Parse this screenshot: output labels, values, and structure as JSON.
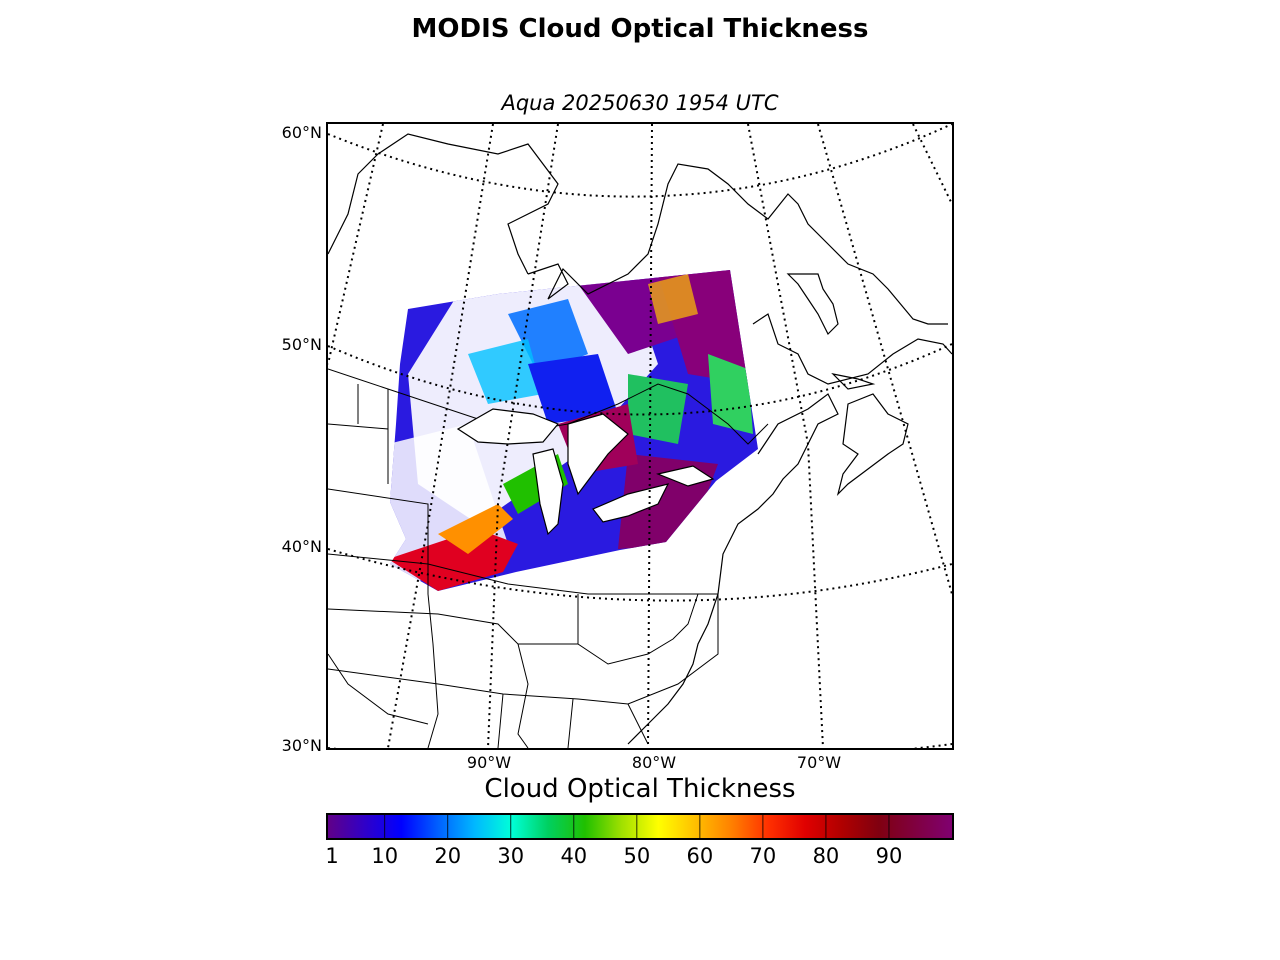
{
  "title": "MODIS Cloud Optical Thickness",
  "subtitle": "Aqua 20250630 1954 UTC",
  "latitude_labels": [
    "60°N",
    "50°N",
    "40°N",
    "30°N"
  ],
  "longitude_labels": [
    "90°W",
    "80°W",
    "70°W"
  ],
  "colorbar": {
    "title": "Cloud Optical Thickness",
    "min": 1,
    "max": 100,
    "ticks": [
      "1",
      "10",
      "20",
      "30",
      "40",
      "50",
      "60",
      "70",
      "80",
      "90"
    ],
    "colormap": [
      "#600088",
      "#3000c8",
      "#0000ff",
      "#0060ff",
      "#00b8ff",
      "#00ffd8",
      "#00d060",
      "#20c000",
      "#a0e000",
      "#ffff00",
      "#ffc000",
      "#ff8000",
      "#ff3000",
      "#e00000",
      "#b00000",
      "#800010",
      "#800040",
      "#800070"
    ]
  },
  "map": {
    "background_color": "#ffffff",
    "line_color": "#000000",
    "gridlines": "dotted"
  }
}
